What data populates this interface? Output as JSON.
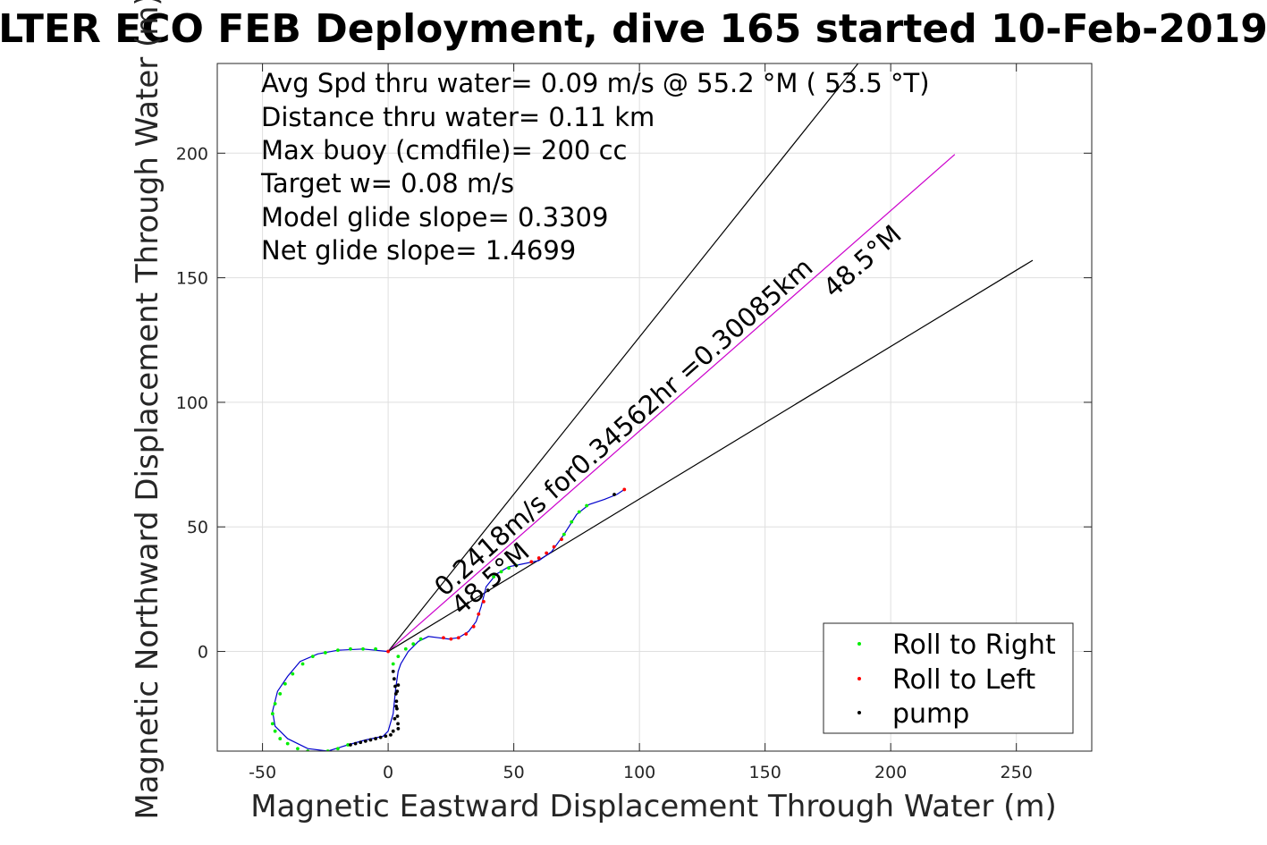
{
  "chart_data": {
    "type": "scatter",
    "title": "LTER ECO FEB Deployment, dive 165 started 10-Feb-2019",
    "xlabel": "Magnetic Eastward Displacement Through Water (m)",
    "ylabel": "Magnetic Northward Displacement Through Water (m)",
    "xlim": [
      -68,
      280
    ],
    "ylim": [
      -40,
      236
    ],
    "xticks": [
      -50,
      0,
      50,
      100,
      150,
      200,
      250
    ],
    "yticks": [
      0,
      50,
      100,
      150,
      200
    ],
    "xtick_labels": [
      "-50",
      "0",
      "50",
      "100",
      "150",
      "200",
      "250"
    ],
    "ytick_labels": [
      "0",
      "50",
      "100",
      "150",
      "200"
    ],
    "grid": true,
    "stats": [
      "Avg Spd thru water=  0.09 m/s @  55.2 °M ( 53.5 °T)",
      "Distance thru water=  0.11 km",
      "Max buoy (cmdfile)= 200 cc",
      "Target w= 0.08 m/s",
      "Model glide slope= 0.3309",
      "Net glide slope= 1.4699"
    ],
    "annotations": {
      "speed_text": "0.2418m/s for0.34562hr =0.30085km",
      "heading_inner": "48.5°M",
      "heading_outer": "48.5°M"
    },
    "lines": [
      {
        "name": "upper-bound",
        "color": "#000000",
        "points": [
          [
            0,
            0
          ],
          [
            187,
            236
          ]
        ]
      },
      {
        "name": "course",
        "color": "#cc00cc",
        "points": [
          [
            0,
            0
          ],
          [
            225.5,
            199.5
          ]
        ]
      },
      {
        "name": "lower-bound",
        "color": "#000000",
        "points": [
          [
            0,
            0
          ],
          [
            256.5,
            157
          ]
        ]
      }
    ],
    "track_color": "#0000cc",
    "track": [
      [
        0,
        0
      ],
      [
        -10,
        1
      ],
      [
        -20,
        0.5
      ],
      [
        -28,
        -1
      ],
      [
        -35,
        -4
      ],
      [
        -40,
        -10
      ],
      [
        -44,
        -16
      ],
      [
        -46,
        -24
      ],
      [
        -45,
        -30
      ],
      [
        -40,
        -35
      ],
      [
        -32,
        -39
      ],
      [
        -24,
        -40
      ],
      [
        -16,
        -37.5
      ],
      [
        -9,
        -35.5
      ],
      [
        -2,
        -34
      ],
      [
        0,
        -32
      ],
      [
        2,
        -25
      ],
      [
        3,
        -15
      ],
      [
        4,
        -8
      ],
      [
        5,
        -5
      ],
      [
        8,
        0
      ],
      [
        12,
        4
      ],
      [
        16,
        6
      ],
      [
        20,
        5.5
      ],
      [
        24,
        5
      ],
      [
        28,
        5.5
      ],
      [
        32,
        8
      ],
      [
        35,
        12
      ],
      [
        37,
        18
      ],
      [
        39,
        26
      ],
      [
        43,
        31
      ],
      [
        48,
        34
      ],
      [
        53,
        35
      ],
      [
        60,
        36.5
      ],
      [
        65,
        40
      ],
      [
        70,
        47
      ],
      [
        75,
        55
      ],
      [
        80,
        59
      ],
      [
        86,
        61
      ],
      [
        91,
        63
      ],
      [
        94,
        65
      ]
    ],
    "series": [
      {
        "name": "Roll to Right",
        "color": "#00ee00",
        "x": [
          -5,
          -10,
          -15,
          -20,
          -25,
          -30,
          -34,
          -38,
          -41,
          -43,
          -45,
          -46,
          -46,
          -45,
          -43,
          -40,
          -36,
          -32,
          -28,
          -24,
          -20,
          -16,
          2,
          4,
          7,
          10,
          13,
          42,
          45,
          48,
          51,
          70,
          73,
          76,
          79
        ],
        "y": [
          1,
          1,
          1,
          0.5,
          -0.5,
          -2,
          -5,
          -9,
          -13,
          -17,
          -21,
          -25,
          -29,
          -32,
          -35,
          -37,
          -39,
          -40,
          -40.5,
          -40,
          -39,
          -37.5,
          -5,
          -2,
          1,
          3,
          5,
          30,
          32,
          33.5,
          34.5,
          47,
          52,
          56,
          58.5
        ]
      },
      {
        "name": "Roll to Left",
        "color": "#ff0000",
        "x": [
          0,
          22,
          25,
          28,
          31,
          34,
          36,
          38,
          57,
          60,
          63,
          66,
          69,
          94
        ],
        "y": [
          0,
          5.5,
          5,
          5.5,
          7,
          10,
          15,
          20,
          36,
          37.5,
          39.5,
          42,
          45,
          65
        ]
      },
      {
        "name": "pump",
        "color": "#000000",
        "x": [
          2,
          2.4,
          2.8,
          3.1,
          3.3,
          3.5,
          3.7,
          3.9,
          4,
          4,
          3.6,
          3.2,
          2.6,
          2,
          1,
          -1,
          -3,
          -5,
          -7,
          -9,
          -11,
          -13,
          -15,
          90
        ],
        "y": [
          -8,
          -11,
          -14,
          -17,
          -20,
          -23,
          -26,
          -29,
          -31,
          -13.5,
          -16,
          -22,
          -27,
          -32,
          -33.5,
          -34,
          -34.5,
          -35,
          -35.5,
          -36,
          -36.5,
          -37,
          -37.5,
          63
        ]
      }
    ],
    "legend": {
      "position": "bottom-right",
      "entries": [
        "Roll to Right",
        "Roll to Left",
        "pump"
      ]
    }
  }
}
